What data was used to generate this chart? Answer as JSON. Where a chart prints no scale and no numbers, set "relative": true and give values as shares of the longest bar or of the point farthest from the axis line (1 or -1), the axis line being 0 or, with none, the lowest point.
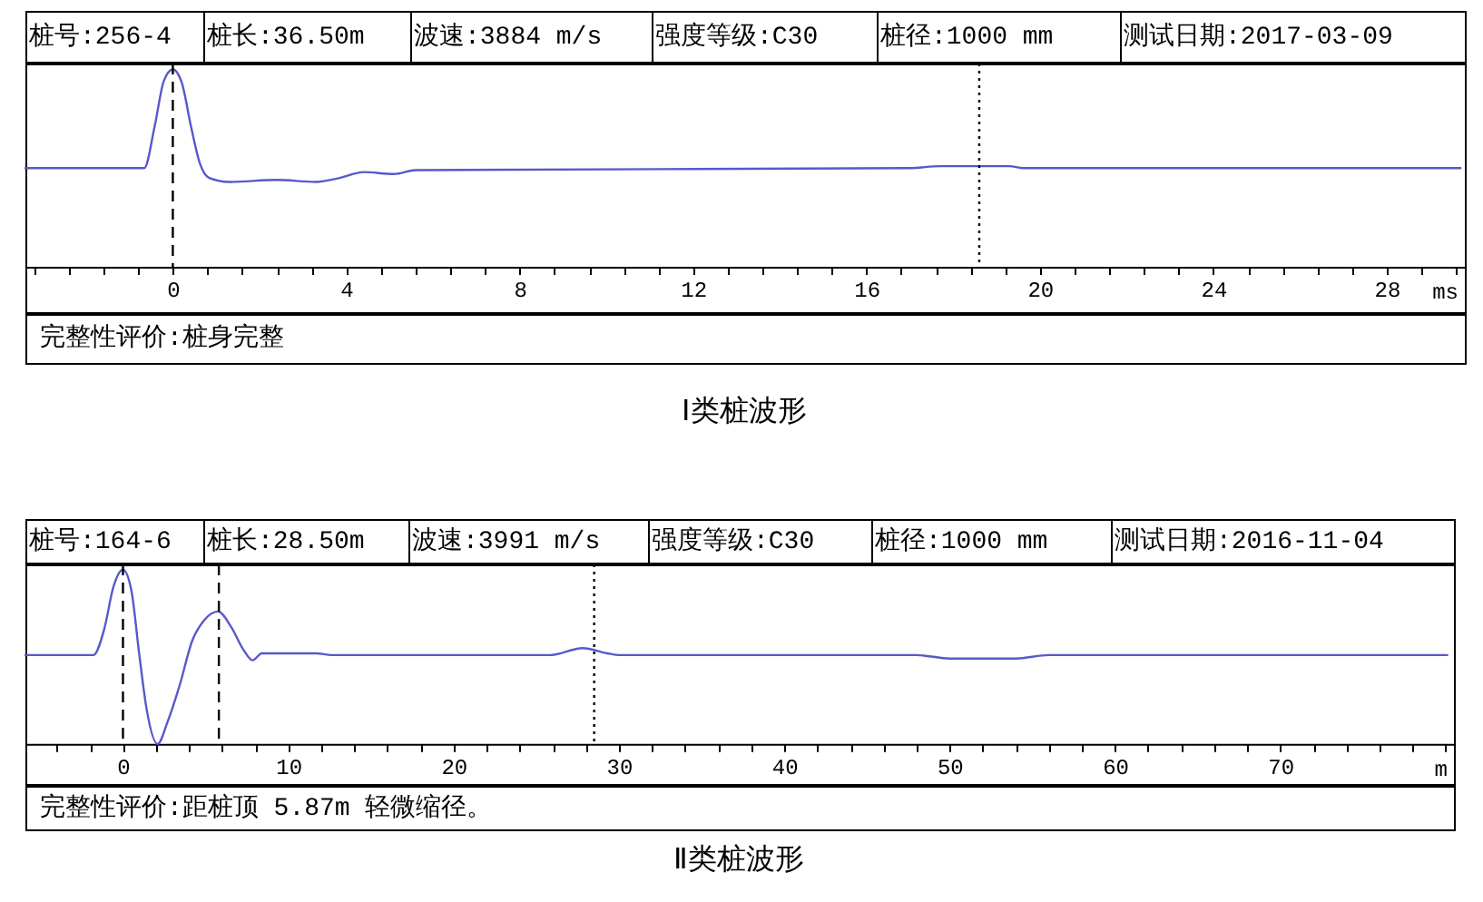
{
  "chart_data": [
    {
      "type": "line",
      "title": "Ⅰ类桩波形",
      "xlabel": "ms",
      "relative": true,
      "tick_labels": "x",
      "annotations": [
        "桩号:256-4",
        "桩长:36.50m",
        "波速:3884 m/s",
        "强度等级:C30",
        "桩径:1000 mm",
        "测试日期:2017-03-09",
        "完整性评价:桩身完整"
      ],
      "x": [
        -3.4,
        -0.66,
        -0.42,
        -0.21,
        0,
        0.21,
        0.42,
        0.63,
        0.84,
        1.3,
        2.4,
        3.3,
        3.85,
        4.4,
        5.1,
        5.6,
        17.0,
        17.7,
        19.3,
        19.6,
        29.7
      ],
      "series": [
        {
          "color": "#5858cc",
          "values": [
            0.5,
            0.5,
            0.71,
            0.94,
            1,
            0.93,
            0.71,
            0.52,
            0.45,
            0.43,
            0.44,
            0.43,
            0.45,
            0.48,
            0.47,
            0.49,
            0.5,
            0.51,
            0.51,
            0.5,
            0.5
          ]
        }
      ],
      "xlim": [
        -3.4,
        29.8
      ],
      "xticks": [
        {
          "value": -3.2,
          "label": null
        },
        {
          "value": -2.4,
          "label": null
        },
        {
          "value": -1.6,
          "label": null
        },
        {
          "value": -0.8,
          "label": null
        },
        0,
        {
          "value": 0.8,
          "label": null
        },
        {
          "value": 1.6,
          "label": null
        },
        {
          "value": 2.4,
          "label": null
        },
        {
          "value": 3.2,
          "label": null
        },
        4,
        {
          "value": 4.8,
          "label": null
        },
        {
          "value": 5.6,
          "label": null
        },
        {
          "value": 6.4,
          "label": null
        },
        {
          "value": 7.2,
          "label": null
        },
        8,
        {
          "value": 8.8,
          "label": null
        },
        {
          "value": 9.6,
          "label": null
        },
        {
          "value": 10.4,
          "label": null
        },
        {
          "value": 11.2,
          "label": null
        },
        12,
        {
          "value": 12.8,
          "label": null
        },
        {
          "value": 13.6,
          "label": null
        },
        {
          "value": 14.4,
          "label": null
        },
        {
          "value": 15.2,
          "label": null
        },
        16,
        {
          "value": 16.8,
          "label": null
        },
        {
          "value": 17.6,
          "label": null
        },
        {
          "value": 18.4,
          "label": null
        },
        {
          "value": 19.2,
          "label": null
        },
        20,
        {
          "value": 20.8,
          "label": null
        },
        {
          "value": 21.6,
          "label": null
        },
        {
          "value": 22.4,
          "label": null
        },
        {
          "value": 23.2,
          "label": null
        },
        24,
        {
          "value": 24.8,
          "label": null
        },
        {
          "value": 25.6,
          "label": null
        },
        {
          "value": 26.4,
          "label": null
        },
        {
          "value": 27.2,
          "label": null
        },
        28,
        {
          "value": 28.8,
          "label": null
        },
        {
          "value": 29.6,
          "label": null
        }
      ],
      "ref_lines": [
        {
          "axis": "x",
          "value": 0,
          "line_style": "dashed",
          "color": "#000000"
        },
        {
          "axis": "x",
          "value": 18.6,
          "line_style": "dotted",
          "color": "#000000"
        }
      ]
    },
    {
      "type": "line",
      "title": "Ⅱ类桩波形",
      "xlabel": "m",
      "relative": true,
      "tick_labels": "x",
      "annotations": [
        "桩号:164-6",
        "桩长:28.50m",
        "波速:3991 m/s",
        "强度等级:C30",
        "桩径:1000 mm",
        "测试日期:2016-11-04",
        "完整性评价:距桩顶 5.87m 轻微缩径。"
      ],
      "x": [
        -5.9,
        -1.79,
        -1.13,
        -0.58,
        0,
        0.51,
        0.99,
        1.43,
        2.09,
        2.71,
        3.44,
        4.18,
        4.91,
        5.75,
        6.55,
        7.29,
        7.84,
        8.4,
        9.9,
        11.7,
        12.6,
        25.8,
        27.8,
        29.3,
        30.0,
        48,
        50,
        54,
        56,
        80.1
      ],
      "series": [
        {
          "color": "#5858cc",
          "values": [
            0.51,
            0.51,
            0.66,
            0.9,
            1,
            0.88,
            0.51,
            0.2,
            0,
            0.13,
            0.34,
            0.59,
            0.71,
            0.76,
            0.67,
            0.54,
            0.48,
            0.52,
            0.52,
            0.52,
            0.51,
            0.51,
            0.55,
            0.52,
            0.51,
            0.51,
            0.49,
            0.49,
            0.51,
            0.51
          ]
        }
      ],
      "xlim": [
        -5.9,
        80.5
      ],
      "xticks": [
        {
          "value": -4,
          "label": null
        },
        {
          "value": -2,
          "label": null
        },
        0,
        {
          "value": 2,
          "label": null
        },
        {
          "value": 4,
          "label": null
        },
        {
          "value": 6,
          "label": null
        },
        {
          "value": 8,
          "label": null
        },
        10,
        {
          "value": 12,
          "label": null
        },
        {
          "value": 14,
          "label": null
        },
        {
          "value": 16,
          "label": null
        },
        {
          "value": 18,
          "label": null
        },
        20,
        {
          "value": 22,
          "label": null
        },
        {
          "value": 24,
          "label": null
        },
        {
          "value": 26,
          "label": null
        },
        {
          "value": 28,
          "label": null
        },
        30,
        {
          "value": 32,
          "label": null
        },
        {
          "value": 34,
          "label": null
        },
        {
          "value": 36,
          "label": null
        },
        {
          "value": 38,
          "label": null
        },
        40,
        {
          "value": 42,
          "label": null
        },
        {
          "value": 44,
          "label": null
        },
        {
          "value": 46,
          "label": null
        },
        {
          "value": 48,
          "label": null
        },
        50,
        {
          "value": 52,
          "label": null
        },
        {
          "value": 54,
          "label": null
        },
        {
          "value": 56,
          "label": null
        },
        {
          "value": 58,
          "label": null
        },
        60,
        {
          "value": 62,
          "label": null
        },
        {
          "value": 64,
          "label": null
        },
        {
          "value": 66,
          "label": null
        },
        {
          "value": 68,
          "label": null
        },
        70,
        {
          "value": 72,
          "label": null
        },
        {
          "value": 74,
          "label": null
        },
        {
          "value": 76,
          "label": null
        },
        {
          "value": 78,
          "label": null
        },
        {
          "value": 80,
          "label": null
        }
      ],
      "ref_lines": [
        {
          "axis": "x",
          "value": 0,
          "line_style": "dashed",
          "color": "#000000"
        },
        {
          "axis": "x",
          "value": 5.8,
          "line_style": "dashed",
          "color": "#000000"
        },
        {
          "axis": "x",
          "value": 28.5,
          "line_style": "dotted",
          "color": "#000000"
        }
      ]
    }
  ]
}
